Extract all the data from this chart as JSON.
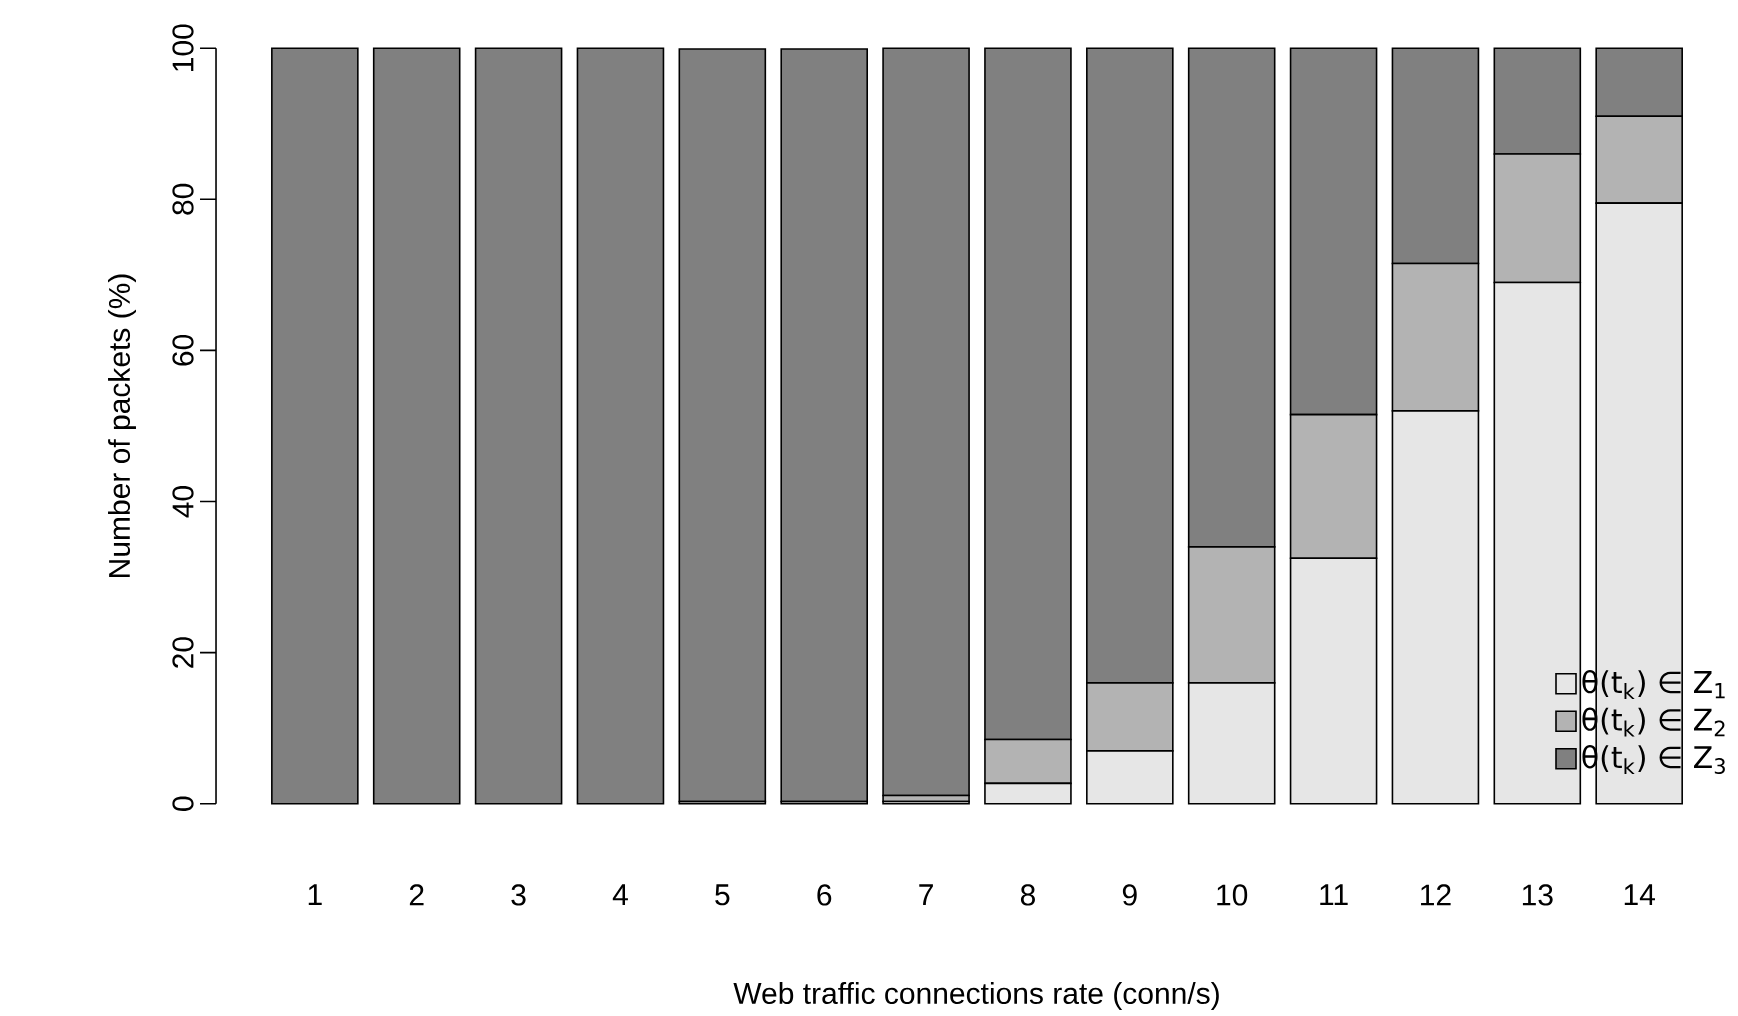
{
  "chart_data": {
    "type": "bar",
    "stacked": true,
    "xlabel": "Web traffic connections rate (conn/s)",
    "ylabel": "Number of packets (%)",
    "categories": [
      "1",
      "2",
      "3",
      "4",
      "5",
      "6",
      "7",
      "8",
      "9",
      "10",
      "11",
      "12",
      "13",
      "14"
    ],
    "series": [
      {
        "name": "θ(t$_{k}$) ∈ Z$_{1}$",
        "color": "#e6e6e6",
        "values": [
          0,
          0,
          0,
          0,
          null,
          null,
          0.3,
          2.7,
          7,
          16,
          32.5,
          52,
          69,
          79.5
        ]
      },
      {
        "name": "θ(t$_{k}$) ∈ Z$_{2}$",
        "color": "#b3b3b3",
        "values": [
          0,
          0,
          0,
          0,
          0.3,
          0.3,
          0.8,
          5.8,
          9,
          18,
          19,
          19.5,
          17,
          11.5
        ]
      },
      {
        "name": "θ(t$_{k}$) ∈ Z$_{3}$",
        "color": "#808080",
        "values": [
          100,
          100,
          100,
          100,
          99.6,
          99.6,
          98.9,
          91.5,
          84,
          66,
          48.5,
          28.5,
          14,
          9
        ]
      }
    ],
    "ylim": [
      0,
      100
    ],
    "yticks": [
      0,
      20,
      40,
      60,
      80,
      100
    ],
    "legend": "bottom right"
  }
}
